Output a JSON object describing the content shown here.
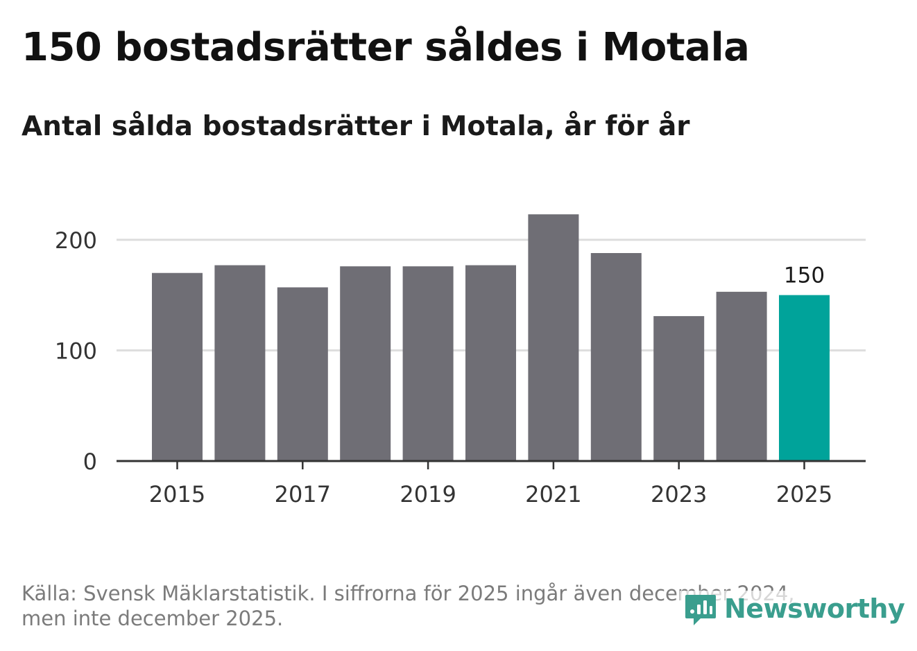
{
  "title": "150 bostadsrätter såldes i Motala",
  "subtitle": "Antal sålda bostadsrätter i Motala, år för år",
  "footer": {
    "line1": "Källa: Svensk Mäklarstatistik. I siffrorna för 2025 ingår även december 2024,",
    "line2": "men inte december 2025."
  },
  "brand": {
    "name": "Newsworthy",
    "icon": "chart-bubble-icon",
    "color": "#3a9e8e"
  },
  "chart_data": {
    "type": "bar",
    "title": "Antal sålda bostadsrätter i Motala, år för år",
    "xlabel": "",
    "ylabel": "",
    "categories": [
      "2015",
      "2016",
      "2017",
      "2018",
      "2019",
      "2020",
      "2021",
      "2022",
      "2023",
      "2024",
      "2025"
    ],
    "values": [
      170,
      177,
      157,
      176,
      176,
      177,
      223,
      188,
      131,
      153,
      150
    ],
    "ylim": [
      0,
      235
    ],
    "y_ticks": [
      0,
      100,
      200
    ],
    "x_tick_labels": [
      "2015",
      "2017",
      "2019",
      "2021",
      "2023",
      "2025"
    ],
    "highlight_index": 10,
    "highlight_label": "150",
    "grid": true,
    "colors": {
      "bar": "#6f6e75",
      "highlight": "#00a39a",
      "grid": "#dddddd",
      "axis": "#333333"
    }
  }
}
